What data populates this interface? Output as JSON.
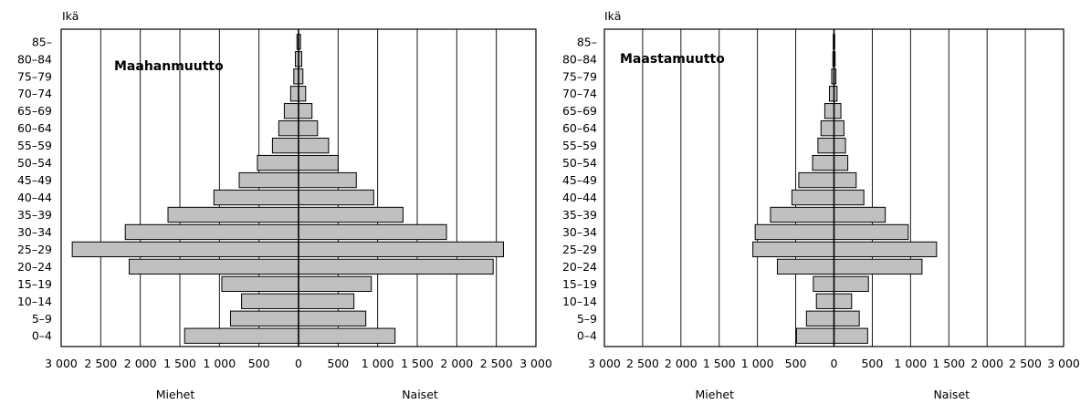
{
  "chart_data": [
    {
      "type": "bar",
      "orientation": "horizontal-population-pyramid",
      "title": "Maahanmuutto",
      "ylabel": "Ikä",
      "xlabel_left": "Miehet",
      "xlabel_right": "Naiset",
      "xlim": [
        -3000,
        3000
      ],
      "xticks": [
        "3 000",
        "2 500",
        "2 000",
        "1 500",
        "1 000",
        "500",
        "0",
        "500",
        "1 000",
        "1 500",
        "2 000",
        "2 500",
        "3 000"
      ],
      "grid": true,
      "categories": [
        "0–4",
        "5–9",
        "10–14",
        "15–19",
        "20–24",
        "25–29",
        "30–34",
        "35–39",
        "40–44",
        "45–49",
        "50–54",
        "55–59",
        "60–64",
        "65–69",
        "70–74",
        "75–79",
        "80–84",
        "85–"
      ],
      "series": [
        {
          "name": "Miehet",
          "values": [
            1440,
            860,
            720,
            970,
            2140,
            2860,
            2190,
            1650,
            1070,
            750,
            520,
            330,
            250,
            180,
            100,
            60,
            40,
            20
          ]
        },
        {
          "name": "Naiset",
          "values": [
            1220,
            850,
            700,
            920,
            2460,
            2590,
            1870,
            1320,
            950,
            730,
            500,
            380,
            240,
            170,
            90,
            55,
            40,
            25
          ]
        }
      ]
    },
    {
      "type": "bar",
      "orientation": "horizontal-population-pyramid",
      "title": "Maastamuutto",
      "ylabel": "Ikä",
      "xlabel_left": "Miehet",
      "xlabel_right": "Naiset",
      "xlim": [
        -3000,
        3000
      ],
      "xticks": [
        "3 000",
        "2 500",
        "2 000",
        "1 500",
        "1 000",
        "500",
        "0",
        "500",
        "1 000",
        "1 500",
        "2 000",
        "2 500",
        "3 000"
      ],
      "grid": true,
      "categories": [
        "0–4",
        "5–9",
        "10–14",
        "15–19",
        "20–24",
        "25–29",
        "30–34",
        "35–39",
        "40–44",
        "45–49",
        "50–54",
        "55–59",
        "60–64",
        "65–69",
        "70–74",
        "75–79",
        "80–84",
        "85–"
      ],
      "series": [
        {
          "name": "Miehet",
          "values": [
            490,
            360,
            230,
            270,
            740,
            1060,
            1030,
            830,
            550,
            460,
            280,
            210,
            170,
            120,
            60,
            30,
            15,
            10
          ]
        },
        {
          "name": "Naiset",
          "values": [
            440,
            330,
            230,
            450,
            1150,
            1340,
            970,
            670,
            390,
            290,
            180,
            150,
            130,
            90,
            40,
            25,
            15,
            10
          ]
        }
      ]
    }
  ]
}
